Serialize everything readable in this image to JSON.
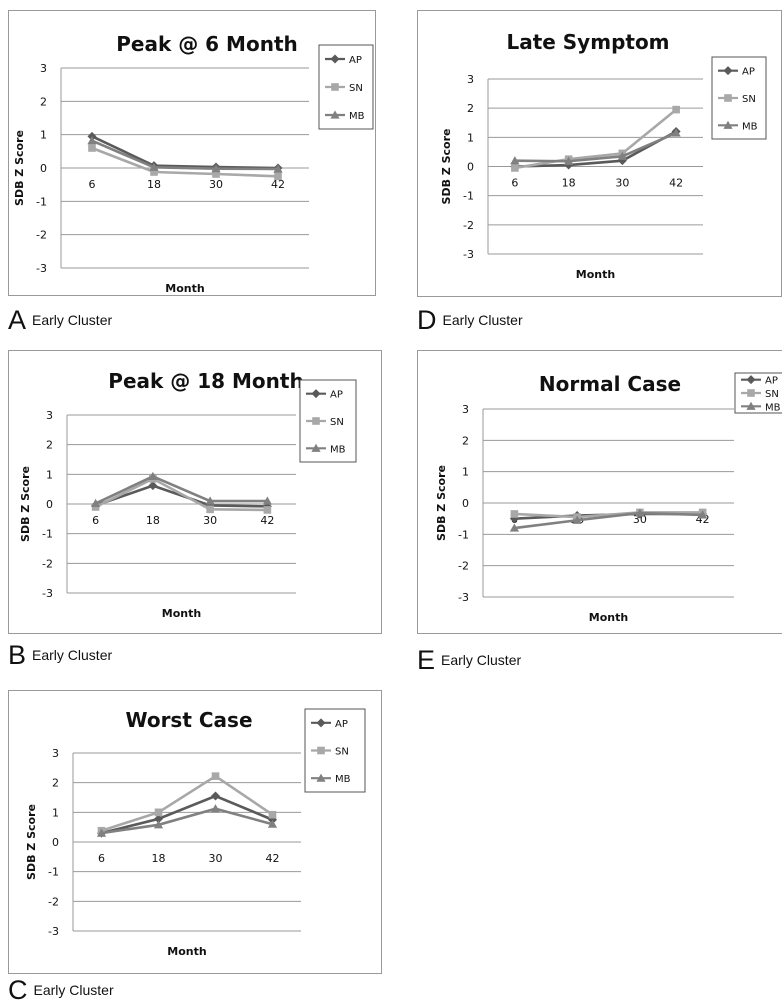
{
  "chart_data": [
    {
      "id": "A",
      "type": "line",
      "title": "Peak @ 6 Month",
      "xlabel": "Month",
      "ylabel": "SDB Z Score",
      "categories": [
        "6",
        "18",
        "30",
        "42"
      ],
      "ylim": [
        -3,
        3
      ],
      "yticks": [
        "3",
        "2",
        "1",
        "0",
        "-1",
        "-2",
        "-3"
      ],
      "series": [
        {
          "name": "AP",
          "values": [
            0.95,
            0.07,
            0.03,
            0.0
          ]
        },
        {
          "name": "SN",
          "values": [
            0.6,
            -0.12,
            -0.18,
            -0.25
          ]
        },
        {
          "name": "MB",
          "values": [
            0.82,
            0.02,
            -0.02,
            -0.03
          ]
        }
      ],
      "caption_letter": "A",
      "caption": "Early Cluster"
    },
    {
      "id": "B",
      "type": "line",
      "title": "Peak @ 18 Month",
      "xlabel": "Month",
      "ylabel": "SDB Z Score",
      "categories": [
        "6",
        "18",
        "30",
        "42"
      ],
      "ylim": [
        -3,
        3
      ],
      "yticks": [
        "3",
        "2",
        "1",
        "0",
        "-1",
        "-2",
        "-3"
      ],
      "series": [
        {
          "name": "AP",
          "values": [
            -0.05,
            0.62,
            -0.05,
            -0.08
          ]
        },
        {
          "name": "SN",
          "values": [
            -0.1,
            0.85,
            -0.18,
            -0.2
          ]
        },
        {
          "name": "MB",
          "values": [
            0.02,
            0.93,
            0.1,
            0.1
          ]
        }
      ],
      "caption_letter": "B",
      "caption": "Early Cluster"
    },
    {
      "id": "C",
      "type": "line",
      "title": "Worst Case",
      "xlabel": "Month",
      "ylabel": "SDB Z Score",
      "categories": [
        "6",
        "18",
        "30",
        "42"
      ],
      "ylim": [
        -3,
        3
      ],
      "yticks": [
        "3",
        "2",
        "1",
        "0",
        "-1",
        "-2",
        "-3"
      ],
      "series": [
        {
          "name": "AP",
          "values": [
            0.3,
            0.78,
            1.55,
            0.75
          ]
        },
        {
          "name": "SN",
          "values": [
            0.38,
            1.0,
            2.22,
            0.92
          ]
        },
        {
          "name": "MB",
          "values": [
            0.3,
            0.58,
            1.12,
            0.6
          ]
        }
      ],
      "caption_letter": "C",
      "caption": "Early Cluster"
    },
    {
      "id": "D",
      "type": "line",
      "title": "Late Symptom",
      "xlabel": "Month",
      "ylabel": "SDB Z Score",
      "categories": [
        "6",
        "18",
        "30",
        "42"
      ],
      "ylim": [
        -3,
        3
      ],
      "yticks": [
        "3",
        "2",
        "1",
        "0",
        "-1",
        "-2",
        "-3"
      ],
      "series": [
        {
          "name": "AP",
          "values": [
            0.0,
            0.05,
            0.2,
            1.2
          ]
        },
        {
          "name": "SN",
          "values": [
            -0.05,
            0.25,
            0.45,
            1.95
          ]
        },
        {
          "name": "MB",
          "values": [
            0.2,
            0.18,
            0.35,
            1.15
          ]
        }
      ],
      "caption_letter": "D",
      "caption": "Early Cluster"
    },
    {
      "id": "E",
      "type": "line",
      "title": "Normal Case",
      "xlabel": "Month",
      "ylabel": "SDB Z Score",
      "categories": [
        "6",
        "18",
        "30",
        "42"
      ],
      "ylim": [
        -3,
        3
      ],
      "yticks": [
        "3",
        "2",
        "1",
        "0",
        "-1",
        "-2",
        "-3"
      ],
      "series": [
        {
          "name": "AP",
          "values": [
            -0.5,
            -0.4,
            -0.35,
            -0.35
          ]
        },
        {
          "name": "SN",
          "values": [
            -0.35,
            -0.45,
            -0.3,
            -0.3
          ]
        },
        {
          "name": "MB",
          "values": [
            -0.8,
            -0.55,
            -0.32,
            -0.38
          ]
        }
      ],
      "caption_letter": "E",
      "caption": "Early Cluster"
    }
  ],
  "colors": {
    "AP": "#5a5a5a",
    "SN": "#a8a8a8",
    "MB": "#808080",
    "gridline": "#9a9a9a",
    "border": "#9a9a9a",
    "text": "#111111"
  }
}
